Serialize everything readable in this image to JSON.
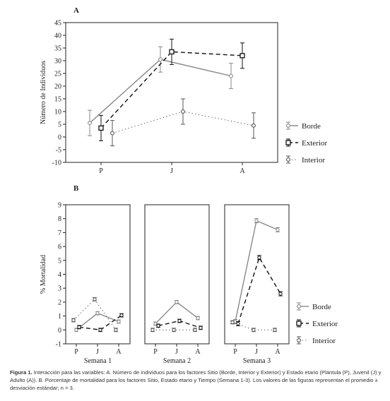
{
  "caption": {
    "label": "Figura 1.",
    "text": " Interacción para las variables: A. Número de individuos para los factores Sitio (Borde, Interior y Exterior) y Estado etario (Plántula (P), Juvenil (J) y Adulto (A)). B. Porcentaje de mortalidad para los factores Sitio, Estado etario y Tiempo (Semana 1-3). Los valores de las figuras representan el promedio ± desviación estándar; n = 3."
  },
  "colors": {
    "borde": "#888888",
    "exterior": "#111111",
    "interior": "#555555"
  },
  "chart_data": [
    {
      "panel": "A",
      "type": "line",
      "ylabel": "Número de Individuos",
      "xlabel": "",
      "categories": [
        "P",
        "J",
        "A"
      ],
      "ylim": [
        -10,
        45
      ],
      "yticks": [
        -10,
        -5,
        0,
        5,
        10,
        15,
        20,
        25,
        30,
        35,
        40,
        45
      ],
      "legend_position": "right",
      "series": [
        {
          "name": "Borde",
          "values": [
            5.5,
            30.5,
            24
          ],
          "errors": [
            5,
            5,
            5
          ],
          "style": "solid"
        },
        {
          "name": "Exterior",
          "values": [
            3.5,
            33.5,
            32
          ],
          "errors": [
            5,
            5,
            5
          ],
          "style": "dashed"
        },
        {
          "name": "Interior",
          "values": [
            1.5,
            10,
            4.5
          ],
          "errors": [
            5,
            5,
            5
          ],
          "style": "dotted"
        }
      ]
    },
    {
      "panel": "B",
      "type": "line",
      "ylabel": "% Mortalidad",
      "xlabel": "",
      "categories": [
        "P",
        "J",
        "A"
      ],
      "ylim": [
        -1,
        9
      ],
      "yticks": [
        -1,
        0,
        1,
        2,
        3,
        4,
        5,
        6,
        7,
        8,
        9
      ],
      "legend_position": "right",
      "legend": [
        "Borde",
        "Exterior",
        "Interior"
      ],
      "subplots": [
        {
          "title": "Semana 1",
          "series": [
            {
              "name": "Borde",
              "values": [
                0,
                1.2,
                0.6
              ],
              "errors": [
                0.12,
                0.12,
                0.12
              ]
            },
            {
              "name": "Exterior",
              "values": [
                0.2,
                0,
                1.05
              ],
              "errors": [
                0.12,
                0.12,
                0.12
              ]
            },
            {
              "name": "Interior",
              "values": [
                0.7,
                2.2,
                0
              ],
              "errors": [
                0.12,
                0.12,
                0.12
              ]
            }
          ]
        },
        {
          "title": "Semana 2",
          "series": [
            {
              "name": "Borde",
              "values": [
                0.45,
                2.0,
                0.85
              ],
              "errors": [
                0.12,
                0.12,
                0.12
              ]
            },
            {
              "name": "Exterior",
              "values": [
                0.3,
                0.65,
                0.15
              ],
              "errors": [
                0.12,
                0.12,
                0.12
              ]
            },
            {
              "name": "Interior",
              "values": [
                0,
                0,
                0
              ],
              "errors": [
                0.12,
                0.12,
                0.12
              ]
            }
          ]
        },
        {
          "title": "Semana 3",
          "series": [
            {
              "name": "Borde",
              "values": [
                0.6,
                7.85,
                7.2
              ],
              "errors": [
                0.15,
                0.15,
                0.15
              ]
            },
            {
              "name": "Exterior",
              "values": [
                0.45,
                5.2,
                2.6
              ],
              "errors": [
                0.15,
                0.15,
                0.15
              ]
            },
            {
              "name": "Interior",
              "values": [
                0.55,
                0,
                0
              ],
              "errors": [
                0.12,
                0.12,
                0.12
              ]
            }
          ]
        }
      ]
    }
  ]
}
